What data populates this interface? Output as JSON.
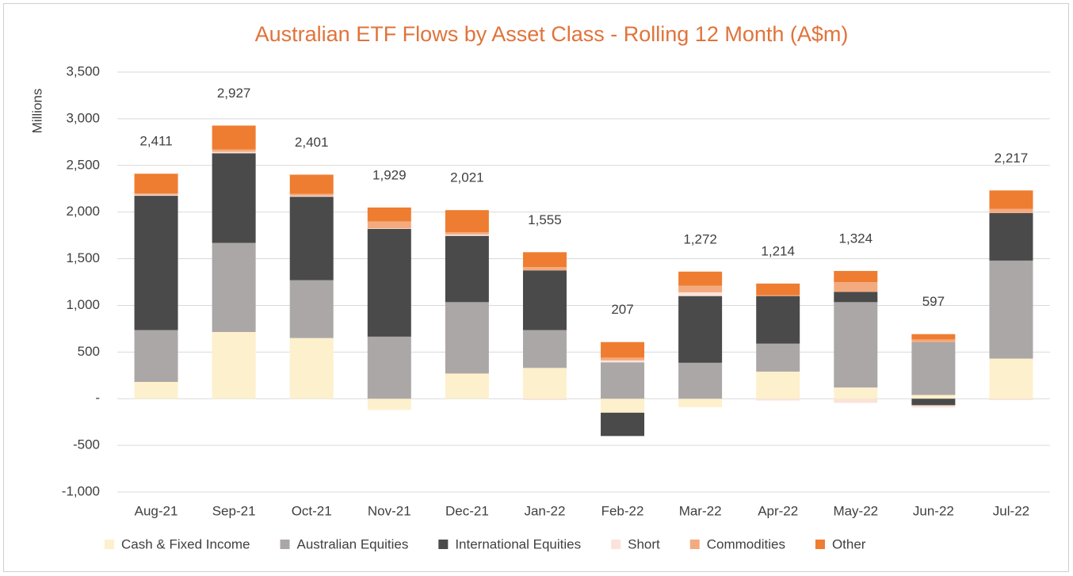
{
  "chart_data": {
    "type": "stacked_bar",
    "title": "Australian ETF Flows by Asset Class - Rolling 12 Month (A$m)",
    "y_label": "Millions",
    "categories": [
      "Aug-21",
      "Sep-21",
      "Oct-21",
      "Nov-21",
      "Dec-21",
      "Jan-22",
      "Feb-22",
      "Mar-22",
      "Apr-22",
      "May-22",
      "Jun-22",
      "Jul-22"
    ],
    "series": [
      {
        "name": "Cash & Fixed Income",
        "color": "#fdf0cc",
        "values": [
          180,
          715,
          650,
          -120,
          270,
          330,
          -150,
          -90,
          290,
          120,
          40,
          430
        ]
      },
      {
        "name": "Australian Equities",
        "color": "#aba7a6",
        "values": [
          555,
          955,
          620,
          665,
          765,
          405,
          390,
          385,
          300,
          915,
          565,
          1050
        ]
      },
      {
        "name": "International Equities",
        "color": "#4a4a4a",
        "values": [
          1440,
          960,
          895,
          1155,
          710,
          640,
          -250,
          715,
          510,
          110,
          -70,
          510
        ]
      },
      {
        "name": "Short",
        "color": "#fbe3d9",
        "values": [
          10,
          15,
          10,
          5,
          15,
          -15,
          20,
          40,
          -20,
          -45,
          -25,
          -15
        ]
      },
      {
        "name": "Commodities",
        "color": "#f4aa7f",
        "values": [
          15,
          25,
          20,
          75,
          25,
          35,
          30,
          70,
          10,
          105,
          30,
          45
        ]
      },
      {
        "name": "Other",
        "color": "#ee7d31",
        "values": [
          211,
          257,
          206,
          149,
          236,
          160,
          167,
          152,
          124,
          119,
          57,
          197
        ]
      }
    ],
    "totals": [
      2411,
      2927,
      2401,
      1929,
      2021,
      1555,
      207,
      1272,
      1214,
      1324,
      597,
      2217
    ],
    "total_labels": [
      "2,411",
      "2,927",
      "2,401",
      "1,929",
      "2,021",
      "1,555",
      "207",
      "1,272",
      "1,214",
      "1,324",
      "597",
      "2,217"
    ],
    "ylim": [
      -1000,
      3500
    ],
    "yticks": [
      {
        "value": -1000,
        "label": "-1,000"
      },
      -500,
      {
        "value": 0,
        "label": "-"
      },
      500,
      {
        "value": 1000,
        "label": "1,000"
      },
      {
        "value": 1500,
        "label": "1,500"
      },
      {
        "value": 2000,
        "label": "2,000"
      },
      {
        "value": 2500,
        "label": "2,500"
      },
      {
        "value": 3000,
        "label": "3,000"
      },
      {
        "value": 3500,
        "label": "3,500"
      }
    ],
    "grid": true,
    "legend": "bottom"
  }
}
